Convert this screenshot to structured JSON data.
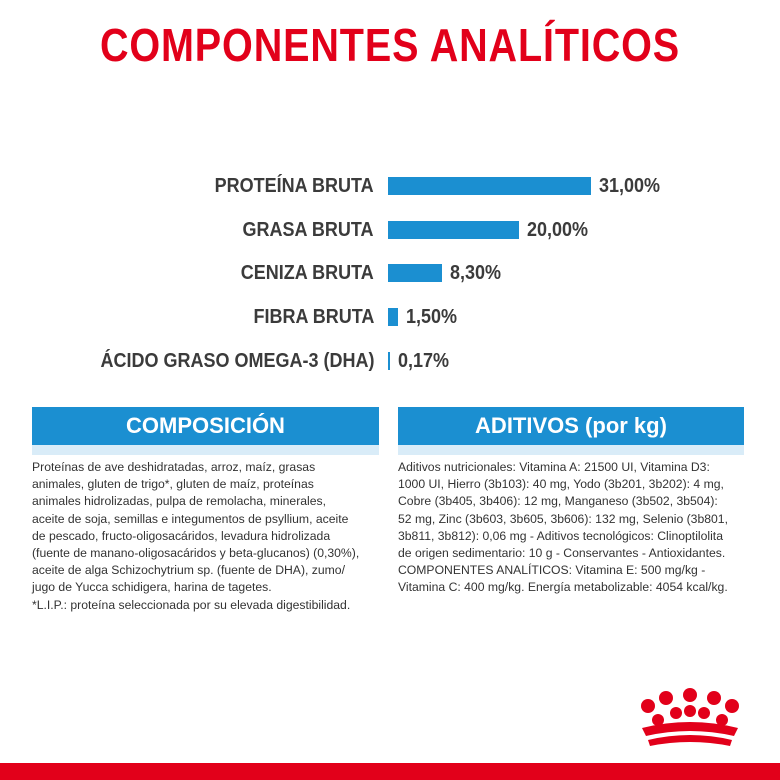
{
  "title": "COMPONENTES ANALÍTICOS",
  "nutrients": [
    {
      "label": "PROTEÍNA BRUTA",
      "value": "31,00%",
      "percent": 31.0
    },
    {
      "label": "GRASA BRUTA",
      "value": "20,00%",
      "percent": 20.0
    },
    {
      "label": "CENIZA BRUTA",
      "value": "8,30%",
      "percent": 8.3
    },
    {
      "label": "FIBRA BRUTA",
      "value": "1,50%",
      "percent": 1.5
    },
    {
      "label": "ÁCIDO GRASO OMEGA-3 (DHA)",
      "value": "0,17%",
      "percent": 0.17
    }
  ],
  "composition": {
    "heading": "COMPOSICIÓN",
    "lines": [
      "Proteínas de ave deshidratadas, arroz, maíz, grasas",
      "animales, gluten de trigo*, gluten de maíz, proteínas",
      "animales hidrolizadas, pulpa de remolacha, minerales,",
      "aceite de soja, semillas e integumentos de psyllium, aceite",
      "de pescado, fructo-oligosacáridos, levadura hidrolizada",
      "(fuente de manano-oligosacáridos y beta-glucanos) (0,30%),",
      "aceite de alga Schizochytrium sp. (fuente de DHA), zumo/",
      "jugo de Yucca schidigera, harina de tagetes.",
      "*L.I.P.: proteína seleccionada por su elevada digestibilidad."
    ]
  },
  "additives": {
    "heading": "ADITIVOS (por kg)",
    "lines": [
      "Aditivos nutricionales: Vitamina A: 21500 UI, Vitamina D3:",
      "1000 UI, Hierro (3b103): 40 mg, Yodo (3b201, 3b202): 4 mg,",
      "Cobre (3b405, 3b406): 12 mg, Manganeso (3b502, 3b504):",
      "52 mg, Zinc (3b603, 3b605, 3b606): 132 mg, Selenio (3b801,",
      "3b811, 3b812): 0,06 mg - Aditivos tecnológicos: Clinoptilolita",
      "de origen sedimentario: 10 g - Conservantes - Antioxidantes.",
      "COMPONENTES ANALÍTICOS: Vitamina E: 500 mg/kg -",
      "Vitamina C: 400 mg/kg. Energía metabolizable: 4054 kcal/kg."
    ]
  },
  "colors": {
    "title": "#e2001a",
    "bar": "#1b8fd1",
    "header_bg": "#1b8fd1",
    "brand_red": "#e2001a"
  },
  "logo": {
    "icon": "royal-canin-crown-logo"
  }
}
